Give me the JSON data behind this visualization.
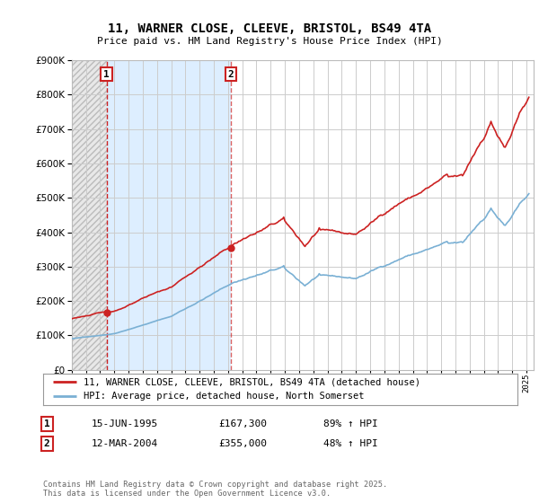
{
  "title": "11, WARNER CLOSE, CLEEVE, BRISTOL, BS49 4TA",
  "subtitle": "Price paid vs. HM Land Registry's House Price Index (HPI)",
  "ylim": [
    0,
    900000
  ],
  "yticks": [
    0,
    100000,
    200000,
    300000,
    400000,
    500000,
    600000,
    700000,
    800000,
    900000
  ],
  "xlim_start": 1993.0,
  "xlim_end": 2025.5,
  "hpi_color": "#7ab0d4",
  "price_color": "#cc2222",
  "marker1_date": 1995.45,
  "marker2_date": 2004.18,
  "marker1_price": 167300,
  "marker2_price": 355000,
  "vline_color": "#cc2222",
  "legend_label1": "11, WARNER CLOSE, CLEEVE, BRISTOL, BS49 4TA (detached house)",
  "legend_label2": "HPI: Average price, detached house, North Somerset",
  "annotation1": "1",
  "annotation2": "2",
  "footnote": "Contains HM Land Registry data © Crown copyright and database right 2025.\nThis data is licensed under the Open Government Licence v3.0.",
  "table_rows": [
    [
      "1",
      "15-JUN-1995",
      "£167,300",
      "89% ↑ HPI"
    ],
    [
      "2",
      "12-MAR-2004",
      "£355,000",
      "48% ↑ HPI"
    ]
  ],
  "background_color": "#ffffff",
  "grid_color": "#cccccc",
  "hatch_bg_color": "#e8e8e8",
  "blue_bg_color": "#ddeeff"
}
